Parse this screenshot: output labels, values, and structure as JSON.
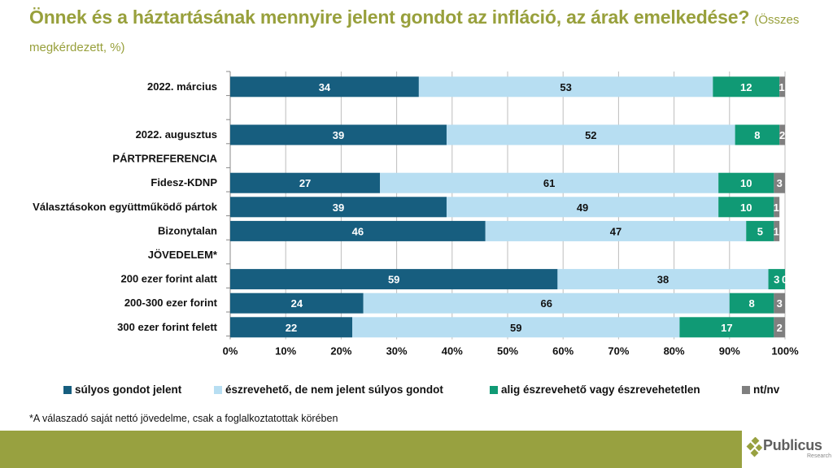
{
  "title": {
    "main": "Önnek és a háztartásának mennyire jelent gondot az infláció, az árak emelkedése?",
    "sub": "(Összes megkérdezett, %)"
  },
  "chart_data": {
    "type": "bar",
    "orientation": "horizontal",
    "stacked": "percent",
    "title": "Önnek és a háztartásának mennyire jelent gondot az infláció, az árak emelkedése? (Összes megkérdezett, %)",
    "xlabel": "",
    "ylabel": "",
    "xlim": [
      0,
      100
    ],
    "x_ticks": [
      "0%",
      "10%",
      "20%",
      "30%",
      "40%",
      "50%",
      "60%",
      "70%",
      "80%",
      "90%",
      "100%"
    ],
    "grid": true,
    "legend_position": "bottom",
    "categories": [
      "2022. március",
      "",
      "2022. augusztus",
      "PÁRTPREFERENCIA",
      "Fidesz-KDNP",
      "Választásokon együttműködő pártok",
      "Bizonytalan",
      "JÖVEDELEM*",
      "200 ezer forint alatt",
      "200-300 ezer forint",
      "300 ezer forint felett"
    ],
    "series": [
      {
        "name": "súlyos gondot jelent",
        "color": "#175E7F",
        "label_color": "#ffffff",
        "values": [
          34,
          null,
          39,
          null,
          27,
          39,
          46,
          null,
          59,
          24,
          22
        ]
      },
      {
        "name": "észrevehető, de nem jelent súlyos gondot",
        "color": "#B7DEF2",
        "label_color": "#111111",
        "values": [
          53,
          null,
          52,
          null,
          61,
          49,
          47,
          null,
          38,
          66,
          59
        ]
      },
      {
        "name": "alig észrevehető vagy észrevehetetlen",
        "color": "#109A75",
        "label_color": "#ffffff",
        "values": [
          12,
          null,
          8,
          null,
          10,
          10,
          5,
          null,
          3,
          8,
          17
        ]
      },
      {
        "name": "nt/nv",
        "color": "#7F7F7F",
        "label_color": "#ffffff",
        "values": [
          1,
          null,
          2,
          null,
          3,
          1,
          1,
          null,
          0,
          3,
          2
        ]
      }
    ]
  },
  "footnote": "*A válaszadó saját nettó jövedelme, csak a foglalkoztatottak körében",
  "brand": {
    "name": "Publicus",
    "sub": "Research",
    "band_color": "#98A140",
    "title_color": "#98A03C"
  }
}
